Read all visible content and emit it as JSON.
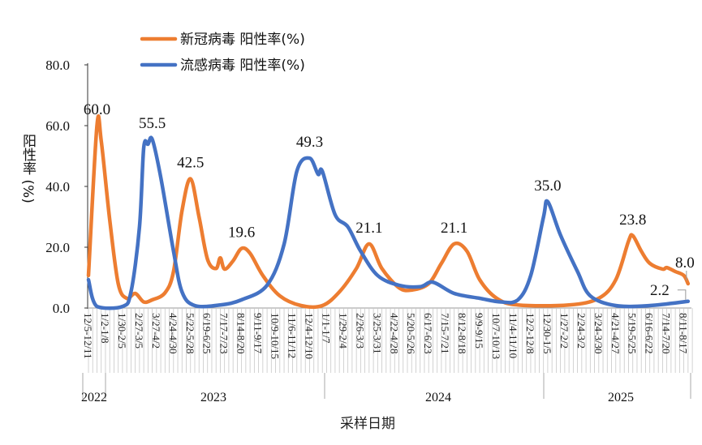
{
  "chart_data": {
    "type": "line",
    "title": "",
    "xlabel": "采样日期",
    "ylabel": "阳性率 (%)",
    "ylim": [
      0,
      80
    ],
    "yticks": [
      "0.0",
      "20.0",
      "40.0",
      "60.0",
      "80.0"
    ],
    "grid": false,
    "legend": "top-left",
    "x_tick_labels": [
      "12/5-12/11",
      "1/2-1/8",
      "1/30-2/5",
      "2/27-3/5",
      "3/27-4/2",
      "4/24-4/30",
      "5/22-5/28",
      "6/19-6/25",
      "7/17-7/23",
      "8/14-8/20",
      "9/11-9/17",
      "10/9-10/15",
      "11/6-11/12",
      "12/4-12/10",
      "1/1-1/7",
      "1/29-2/4",
      "2/26-3/3",
      "3/25-3/31",
      "4/22-4/28",
      "5/20-5/26",
      "6/17-6/23",
      "7/15-7/21",
      "8/12-8/18",
      "9/9-9/15",
      "10/7-10/13",
      "11/4-11/10",
      "12/2-12/8",
      "12/30-1/5",
      "1/27-2/2",
      "2/24-3/2",
      "3/24-3/30",
      "4/21-4/27",
      "5/19-5/25",
      "6/16-6/22",
      "7/14-7/20",
      "8/11-8/17"
    ],
    "years": [
      "2022",
      "2023",
      "2024",
      "2025"
    ],
    "series": [
      {
        "name": "新冠病毒 阳性率(%)",
        "color": "#ED7D31",
        "points": [
          [
            "2022-12-05",
            10.7
          ],
          [
            "2022-12-19",
            60.0
          ],
          [
            "2022-12-26",
            55
          ],
          [
            "2023-01-09",
            29
          ],
          [
            "2023-01-23",
            8
          ],
          [
            "2023-02-06",
            3.2
          ],
          [
            "2023-02-20",
            4.8
          ],
          [
            "2023-03-06",
            2
          ],
          [
            "2023-03-20",
            2.7
          ],
          [
            "2023-04-10",
            5
          ],
          [
            "2023-04-24",
            12
          ],
          [
            "2023-05-08",
            32
          ],
          [
            "2023-05-22",
            42.5
          ],
          [
            "2023-06-05",
            30
          ],
          [
            "2023-06-19",
            16
          ],
          [
            "2023-07-03",
            13
          ],
          [
            "2023-07-10",
            16.5
          ],
          [
            "2023-07-17",
            12.8
          ],
          [
            "2023-07-31",
            15.5
          ],
          [
            "2023-08-14",
            19.6
          ],
          [
            "2023-08-28",
            18
          ],
          [
            "2023-09-18",
            10.7
          ],
          [
            "2023-10-16",
            4
          ],
          [
            "2023-11-20",
            0.8
          ],
          [
            "2023-12-25",
            0.8
          ],
          [
            "2024-01-22",
            5.3
          ],
          [
            "2024-02-19",
            13
          ],
          [
            "2024-03-11",
            21.1
          ],
          [
            "2024-04-01",
            13
          ],
          [
            "2024-04-29",
            6.7
          ],
          [
            "2024-05-20",
            5.9
          ],
          [
            "2024-06-17",
            8
          ],
          [
            "2024-07-08",
            14.7
          ],
          [
            "2024-07-29",
            21.1
          ],
          [
            "2024-08-19",
            18.7
          ],
          [
            "2024-09-09",
            9.3
          ],
          [
            "2024-10-07",
            3.2
          ],
          [
            "2024-11-11",
            1
          ],
          [
            "2025-02-03",
            1
          ],
          [
            "2025-03-24",
            3.2
          ],
          [
            "2025-04-21",
            9.3
          ],
          [
            "2025-05-12",
            22
          ],
          [
            "2025-05-19",
            23.8
          ],
          [
            "2025-06-02",
            18.7
          ],
          [
            "2025-06-16",
            14.7
          ],
          [
            "2025-07-07",
            12.8
          ],
          [
            "2025-07-14",
            13.3
          ],
          [
            "2025-07-28",
            12
          ],
          [
            "2025-08-11",
            10.7
          ],
          [
            "2025-08-18",
            8.0
          ]
        ],
        "labels": [
          [
            "2022-12-19",
            "60.0"
          ],
          [
            "2023-05-22",
            "42.5"
          ],
          [
            "2023-08-14",
            "19.6"
          ],
          [
            "2024-03-11",
            "21.1"
          ],
          [
            "2024-07-29",
            "21.1"
          ],
          [
            "2025-05-19",
            "23.8"
          ],
          [
            "2025-08-18",
            "8.0"
          ]
        ]
      },
      {
        "name": "流感病毒 阳性率(%)",
        "color": "#4472C4",
        "points": [
          [
            "2022-12-05",
            9.3
          ],
          [
            "2022-12-19",
            0.5
          ],
          [
            "2023-01-30",
            0.5
          ],
          [
            "2023-02-13",
            5.3
          ],
          [
            "2023-02-27",
            26.7
          ],
          [
            "2023-03-06",
            52.8
          ],
          [
            "2023-03-13",
            53.9
          ],
          [
            "2023-03-20",
            55.5
          ],
          [
            "2023-04-03",
            43
          ],
          [
            "2023-04-24",
            18.7
          ],
          [
            "2023-05-08",
            5.3
          ],
          [
            "2023-05-29",
            0.8
          ],
          [
            "2023-07-10",
            1
          ],
          [
            "2023-08-14",
            2.7
          ],
          [
            "2023-09-25",
            7.5
          ],
          [
            "2023-10-23",
            21
          ],
          [
            "2023-11-13",
            45
          ],
          [
            "2023-12-04",
            49.3
          ],
          [
            "2023-12-18",
            44
          ],
          [
            "2023-12-25",
            45
          ],
          [
            "2024-01-15",
            30.7
          ],
          [
            "2024-02-05",
            26.7
          ],
          [
            "2024-02-26",
            18.7
          ],
          [
            "2024-03-25",
            10.7
          ],
          [
            "2024-04-29",
            7.5
          ],
          [
            "2024-06-03",
            7
          ],
          [
            "2024-06-24",
            8.5
          ],
          [
            "2024-07-29",
            4.8
          ],
          [
            "2024-09-09",
            3.2
          ],
          [
            "2024-10-14",
            2
          ],
          [
            "2024-11-11",
            2.7
          ],
          [
            "2024-12-02",
            10.7
          ],
          [
            "2024-12-23",
            29.9
          ],
          [
            "2024-12-30",
            35.0
          ],
          [
            "2025-01-20",
            24
          ],
          [
            "2025-02-17",
            12
          ],
          [
            "2025-03-10",
            4
          ],
          [
            "2025-04-21",
            0.8
          ],
          [
            "2025-06-16",
            0.8
          ],
          [
            "2025-08-18",
            2.2
          ]
        ],
        "labels": [
          [
            "2023-03-20",
            "55.5"
          ],
          [
            "2023-12-04",
            "49.3"
          ],
          [
            "2024-12-30",
            "35.0"
          ],
          [
            "2025-08-18",
            "2.2"
          ]
        ]
      }
    ]
  }
}
